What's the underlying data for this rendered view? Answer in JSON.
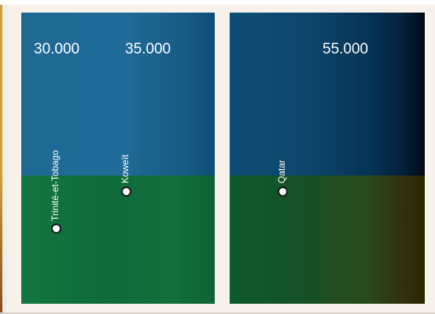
{
  "axis_ticks": {
    "t1": "30.000",
    "t2": "35.000",
    "t3": "55.000"
  },
  "points": {
    "p1": {
      "label": "Trinité-et-Tobago",
      "value": 30000
    },
    "p2": {
      "label": "Koweït",
      "value": 35000
    },
    "p3": {
      "label": "Qatar",
      "value": 55000
    }
  }
}
